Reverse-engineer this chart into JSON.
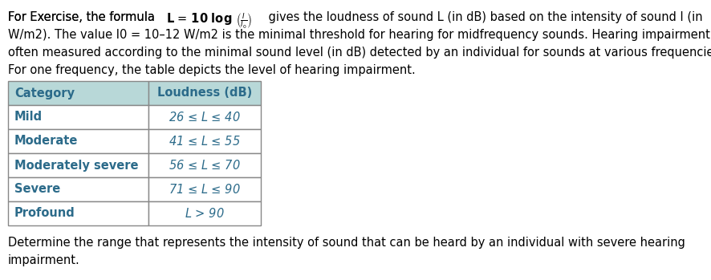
{
  "line1_prefix": "For Exercise, the formula ",
  "line1_suffix": " gives the loudness of sound L (in dB) based on the intensity of sound I (in",
  "line2": "W/m2). The value I0 = 10–12 W/m2 is the minimal threshold for hearing for midfrequency sounds. Hearing impairment is",
  "line3": "often measured according to the minimal sound level (in dB) detected by an individual for sounds at various frequencies.",
  "line4": "For one frequency, the table depicts the level of hearing impairment.",
  "footer_line1": "Determine the range that represents the intensity of sound that can be heard by an individual with severe hearing",
  "footer_line2": "impairment.",
  "table_header": [
    "Category",
    "Loudness (dB)"
  ],
  "table_rows": [
    [
      "Mild",
      "26 ≤ L ≤ 40"
    ],
    [
      "Moderate",
      "41 ≤ L ≤ 55"
    ],
    [
      "Moderately severe",
      "56 ≤ L ≤ 70"
    ],
    [
      "Severe",
      "71 ≤ L ≤ 90"
    ],
    [
      "Profound",
      "L > 90"
    ]
  ],
  "header_bg_color": "#b8d8d8",
  "header_text_color": "#2c6b8a",
  "row_text_color": "#2c6b8a",
  "table_border_color": "#888888",
  "body_text_color": "#000000",
  "background_color": "#ffffff",
  "font_size_body": 10.5,
  "font_size_table": 10.5
}
